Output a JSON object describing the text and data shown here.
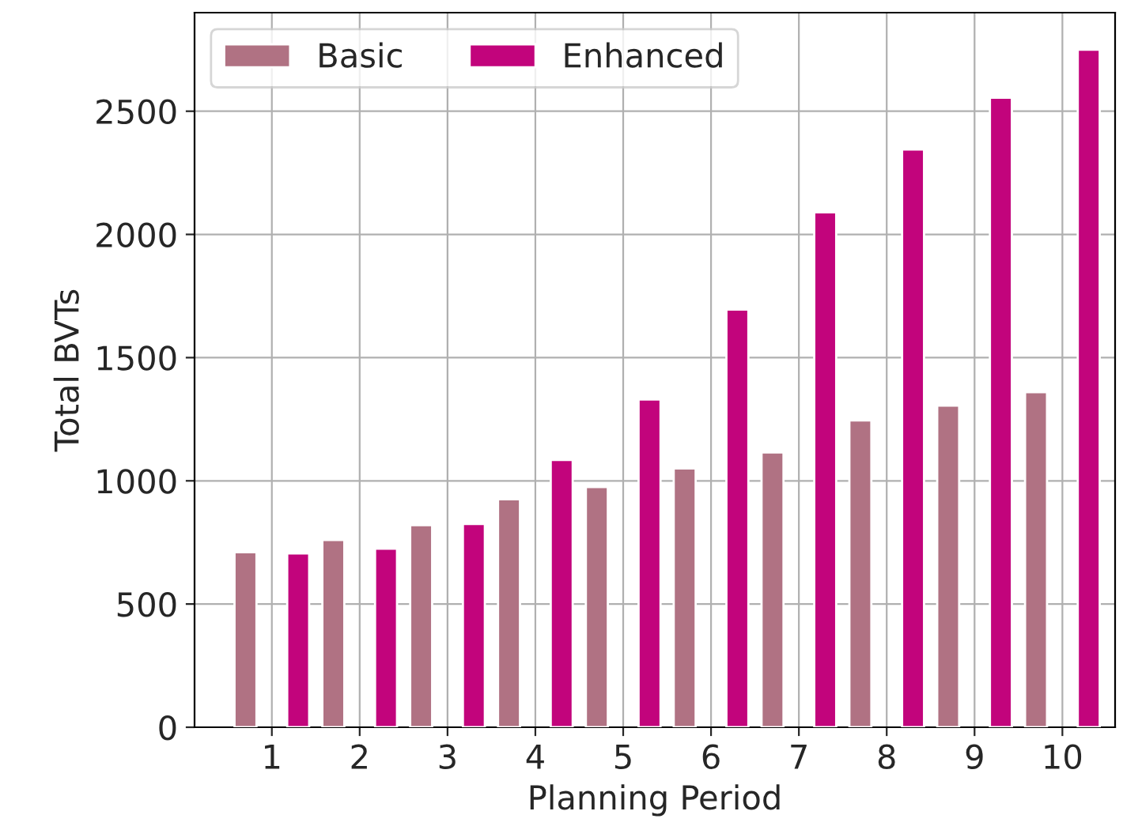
{
  "chart_data": {
    "type": "bar",
    "xlabel": "Planning Period",
    "ylabel": "Total BVTs",
    "x": [
      1,
      2,
      3,
      4,
      5,
      6,
      7,
      8,
      9,
      10
    ],
    "series": [
      {
        "name": "Basic",
        "color": "#b07283",
        "values": [
          710,
          760,
          820,
          925,
          975,
          1050,
          1115,
          1245,
          1305,
          1360
        ]
      },
      {
        "name": "Enhanced",
        "color": "#c2047c",
        "values": [
          705,
          725,
          825,
          1085,
          1330,
          1695,
          2090,
          2345,
          2555,
          2750
        ]
      }
    ],
    "xlim": [
      0.12,
      10.6
    ],
    "xticks": [
      1,
      2,
      3,
      4,
      5,
      6,
      7,
      8,
      9,
      10
    ],
    "ylim": [
      0,
      2900
    ],
    "yticks": [
      0,
      500,
      1000,
      1500,
      2000,
      2500
    ],
    "grid": true,
    "legend": "top left"
  }
}
